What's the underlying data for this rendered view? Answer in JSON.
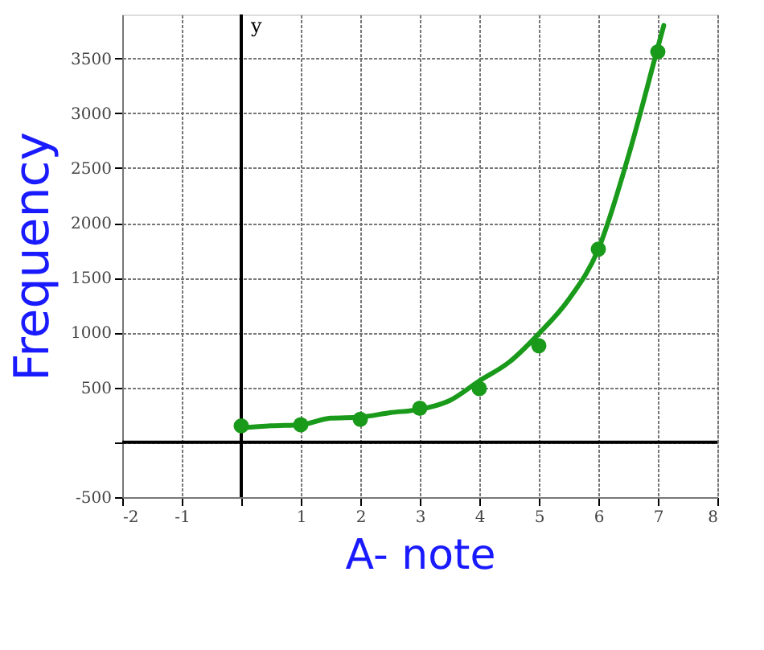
{
  "chart_data": {
    "type": "scatter",
    "xlabel": "A- note",
    "ylabel": "Frequency",
    "annotations": [
      "y"
    ],
    "xlim": [
      -2,
      8
    ],
    "ylim": [
      -500,
      3900
    ],
    "xticks": [
      -2,
      -1,
      {
        "value": 0,
        "label": null
      },
      1,
      2,
      3,
      4,
      5,
      6,
      7,
      8
    ],
    "yticks": [
      -500,
      {
        "value": 0,
        "label": null
      },
      500,
      1000,
      1500,
      2000,
      2500,
      3000,
      3500
    ],
    "grid": true,
    "series": [
      {
        "color": "#1a9a1a",
        "marker": "circle",
        "x": [
          0,
          1,
          2,
          3,
          4,
          5,
          6,
          7
        ],
        "values": [
          150,
          160,
          210,
          310,
          490,
          880,
          1760,
          3560
        ]
      },
      {
        "type": "line",
        "color": "#1a9a1a",
        "line_style": "solid",
        "x": [
          0,
          0.5,
          1,
          1.5,
          2,
          2.5,
          3,
          3.5,
          4,
          4.5,
          5,
          5.5,
          6,
          6.5,
          7,
          7.1
        ],
        "values": [
          130,
          150,
          160,
          220,
          230,
          270,
          300,
          380,
          560,
          730,
          990,
          1300,
          1760,
          2600,
          3600,
          3800
        ]
      }
    ]
  }
}
